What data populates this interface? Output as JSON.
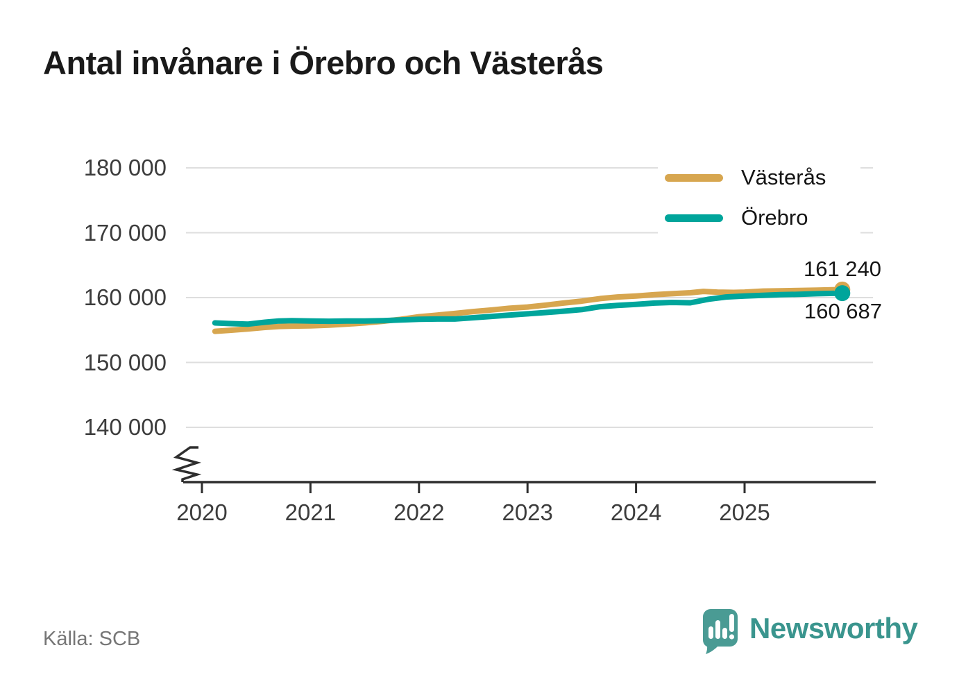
{
  "header": {
    "title": "Antal invånare i Örebro och Västerås"
  },
  "chart_data": {
    "type": "line",
    "title": "Antal invånare i Örebro och Västerås",
    "xlabel": "",
    "ylabel": "",
    "x_range": [
      2020,
      2026
    ],
    "ylim": [
      136000,
      183000
    ],
    "y_axis_break": true,
    "grid": "horizontal",
    "legend_position": "top-right",
    "grid_color": "#dedede",
    "axis_color": "#2e2e2e",
    "y_ticks": [
      {
        "value": 180000,
        "label": "180 000"
      },
      {
        "value": 170000,
        "label": "170 000"
      },
      {
        "value": 160000,
        "label": "160 000"
      },
      {
        "value": 150000,
        "label": "150 000"
      },
      {
        "value": 140000,
        "label": "140 000"
      }
    ],
    "x_ticks": [
      {
        "value": 2020,
        "label": "2020"
      },
      {
        "value": 2021,
        "label": "2021"
      },
      {
        "value": 2022,
        "label": "2022"
      },
      {
        "value": 2023,
        "label": "2023"
      },
      {
        "value": 2024,
        "label": "2024"
      },
      {
        "value": 2025,
        "label": "2025"
      }
    ],
    "series": [
      {
        "id": "vasteras",
        "name": "Västerås",
        "color": "#d7a64f",
        "end_value": 161240,
        "end_label": "161 240",
        "points": [
          [
            2020.12,
            154800
          ],
          [
            2020.25,
            154950
          ],
          [
            2020.42,
            155150
          ],
          [
            2020.58,
            155400
          ],
          [
            2020.71,
            155550
          ],
          [
            2020.83,
            155600
          ],
          [
            2021.0,
            155650
          ],
          [
            2021.17,
            155750
          ],
          [
            2021.33,
            155900
          ],
          [
            2021.5,
            156100
          ],
          [
            2021.67,
            156350
          ],
          [
            2021.83,
            156650
          ],
          [
            2022.0,
            157050
          ],
          [
            2022.17,
            157300
          ],
          [
            2022.33,
            157550
          ],
          [
            2022.5,
            157850
          ],
          [
            2022.67,
            158100
          ],
          [
            2022.83,
            158350
          ],
          [
            2023.0,
            158550
          ],
          [
            2023.17,
            158850
          ],
          [
            2023.33,
            159150
          ],
          [
            2023.5,
            159450
          ],
          [
            2023.67,
            159850
          ],
          [
            2023.83,
            160100
          ],
          [
            2024.0,
            160250
          ],
          [
            2024.17,
            160450
          ],
          [
            2024.33,
            160600
          ],
          [
            2024.5,
            160750
          ],
          [
            2024.62,
            160950
          ],
          [
            2024.75,
            160850
          ],
          [
            2024.9,
            160800
          ],
          [
            2025.0,
            160850
          ],
          [
            2025.17,
            161000
          ],
          [
            2025.33,
            161050
          ],
          [
            2025.5,
            161100
          ],
          [
            2025.67,
            161150
          ],
          [
            2025.9,
            161240
          ]
        ]
      },
      {
        "id": "orebro",
        "name": "Örebro",
        "color": "#00a59b",
        "end_value": 160687,
        "end_label": "160 687",
        "points": [
          [
            2020.12,
            156100
          ],
          [
            2020.25,
            156000
          ],
          [
            2020.42,
            155900
          ],
          [
            2020.58,
            156200
          ],
          [
            2020.71,
            156400
          ],
          [
            2020.83,
            156450
          ],
          [
            2021.0,
            156400
          ],
          [
            2021.17,
            156350
          ],
          [
            2021.33,
            156400
          ],
          [
            2021.5,
            156400
          ],
          [
            2021.67,
            156450
          ],
          [
            2021.83,
            156550
          ],
          [
            2022.0,
            156650
          ],
          [
            2022.17,
            156700
          ],
          [
            2022.33,
            156700
          ],
          [
            2022.5,
            156900
          ],
          [
            2022.67,
            157100
          ],
          [
            2022.83,
            157300
          ],
          [
            2023.0,
            157500
          ],
          [
            2023.17,
            157700
          ],
          [
            2023.33,
            157900
          ],
          [
            2023.5,
            158150
          ],
          [
            2023.67,
            158600
          ],
          [
            2023.83,
            158800
          ],
          [
            2024.0,
            158950
          ],
          [
            2024.17,
            159150
          ],
          [
            2024.33,
            159250
          ],
          [
            2024.5,
            159200
          ],
          [
            2024.67,
            159750
          ],
          [
            2024.83,
            160100
          ],
          [
            2025.0,
            160250
          ],
          [
            2025.17,
            160350
          ],
          [
            2025.33,
            160450
          ],
          [
            2025.5,
            160500
          ],
          [
            2025.67,
            160600
          ],
          [
            2025.9,
            160687
          ]
        ]
      }
    ]
  },
  "footer": {
    "source": "Källa: SCB",
    "brand": "Newsworthy",
    "brand_icon_color": "#4a9b94",
    "brand_text_color": "#3a958e"
  }
}
